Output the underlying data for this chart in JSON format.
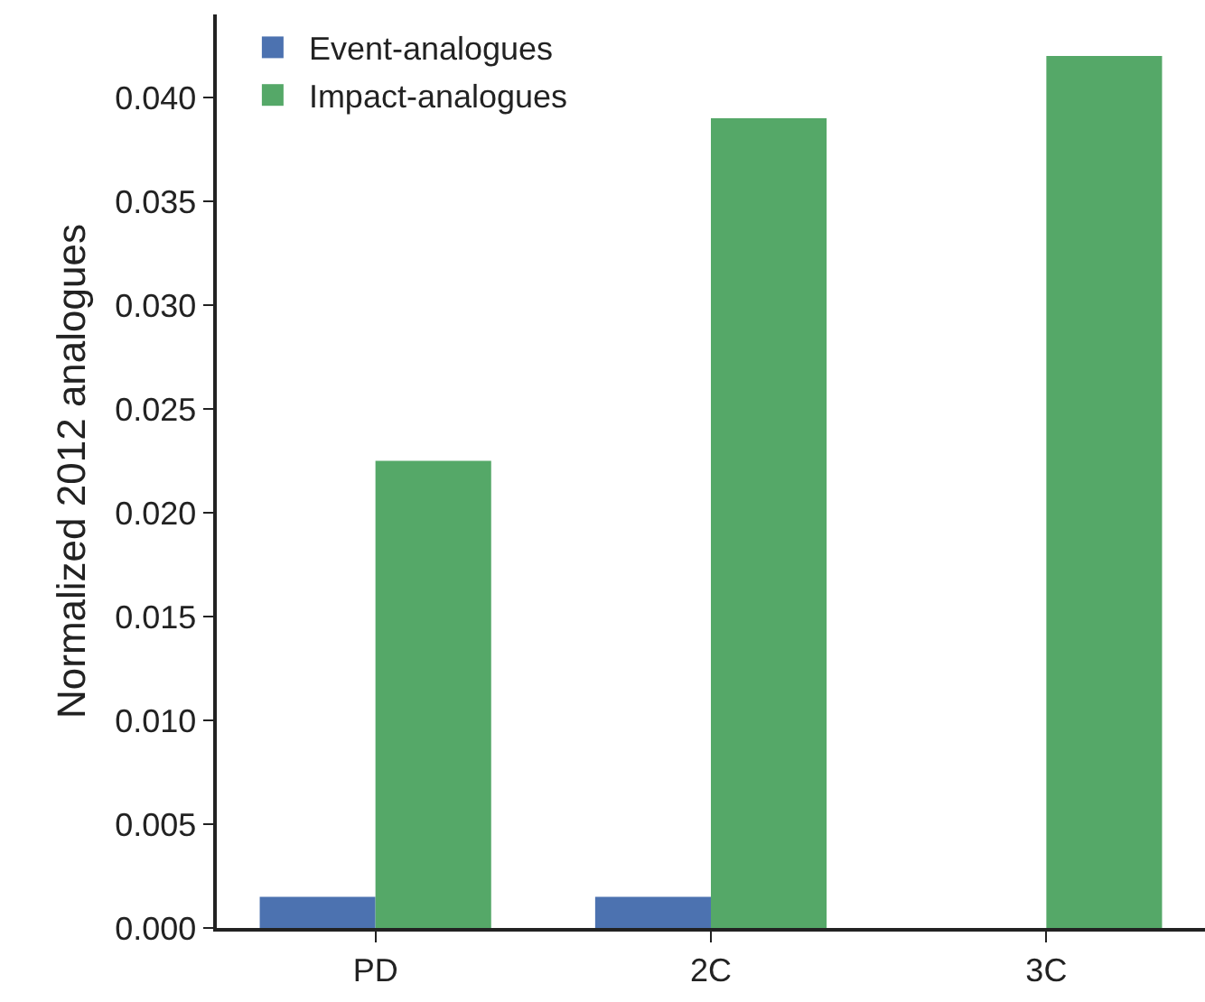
{
  "chart_data": {
    "type": "bar",
    "ylabel": "Normalized 2012 analogues",
    "categories": [
      "PD",
      "2C",
      "3C"
    ],
    "series": [
      {
        "name": "Event-analogues",
        "color": "#4c72b0",
        "values": [
          0.0015,
          0.0015,
          0
        ]
      },
      {
        "name": "Impact-analogues",
        "color": "#55a868",
        "values": [
          0.0225,
          0.039,
          0.042
        ]
      }
    ],
    "ylim": [
      0,
      0.044
    ],
    "yticks": [
      {
        "value": 0,
        "label": "0.000"
      },
      0.005,
      {
        "value": 0.01,
        "label": "0.010"
      },
      0.015,
      {
        "value": 0.02,
        "label": "0.020"
      },
      0.025,
      {
        "value": 0.03,
        "label": "0.030"
      },
      0.035,
      {
        "value": 0.04,
        "label": "0.040"
      }
    ],
    "grid": false,
    "legend": "top left"
  }
}
